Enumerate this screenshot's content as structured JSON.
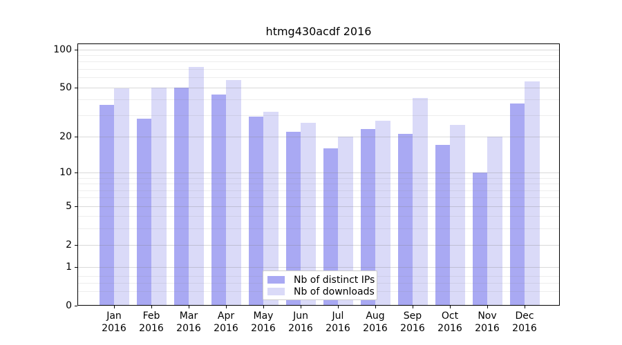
{
  "chart_data": {
    "type": "bar",
    "title": "htmg430acdf 2016",
    "categories": [
      "Jan",
      "Feb",
      "Mar",
      "Apr",
      "May",
      "Jun",
      "Jul",
      "Aug",
      "Sep",
      "Oct",
      "Nov",
      "Dec"
    ],
    "year_label": "2016",
    "series": [
      {
        "name": "Nb of distinct IPs",
        "color": "#a9a9f3",
        "values": [
          36,
          28,
          50,
          44,
          29,
          22,
          16,
          23,
          21,
          17,
          10,
          37
        ]
      },
      {
        "name": "Nb of downloads",
        "color": "#dadaf8",
        "values": [
          49,
          50,
          73,
          57,
          32,
          26,
          20,
          27,
          41,
          25,
          20,
          56
        ]
      }
    ],
    "xlabel": "",
    "ylabel": "",
    "yscale": "log(value+1)",
    "ylim": [
      0,
      112
    ],
    "yticks": [
      0,
      1,
      2,
      5,
      10,
      20,
      50,
      100
    ],
    "minor_gridlines": [
      0.3,
      0.5,
      0.7,
      3,
      4,
      6,
      7,
      8,
      9,
      30,
      40,
      60,
      70,
      80,
      90
    ],
    "grid": "on, drawn over bars",
    "legend_position": "lower center inside plot"
  },
  "colors": {
    "background": "#ffffff",
    "axis": "#000000",
    "major_grid": "rgba(128,128,128,0.30)",
    "minor_grid": "rgba(128,128,128,0.14)",
    "legend_border": "#cccccc",
    "text": "#000000"
  }
}
